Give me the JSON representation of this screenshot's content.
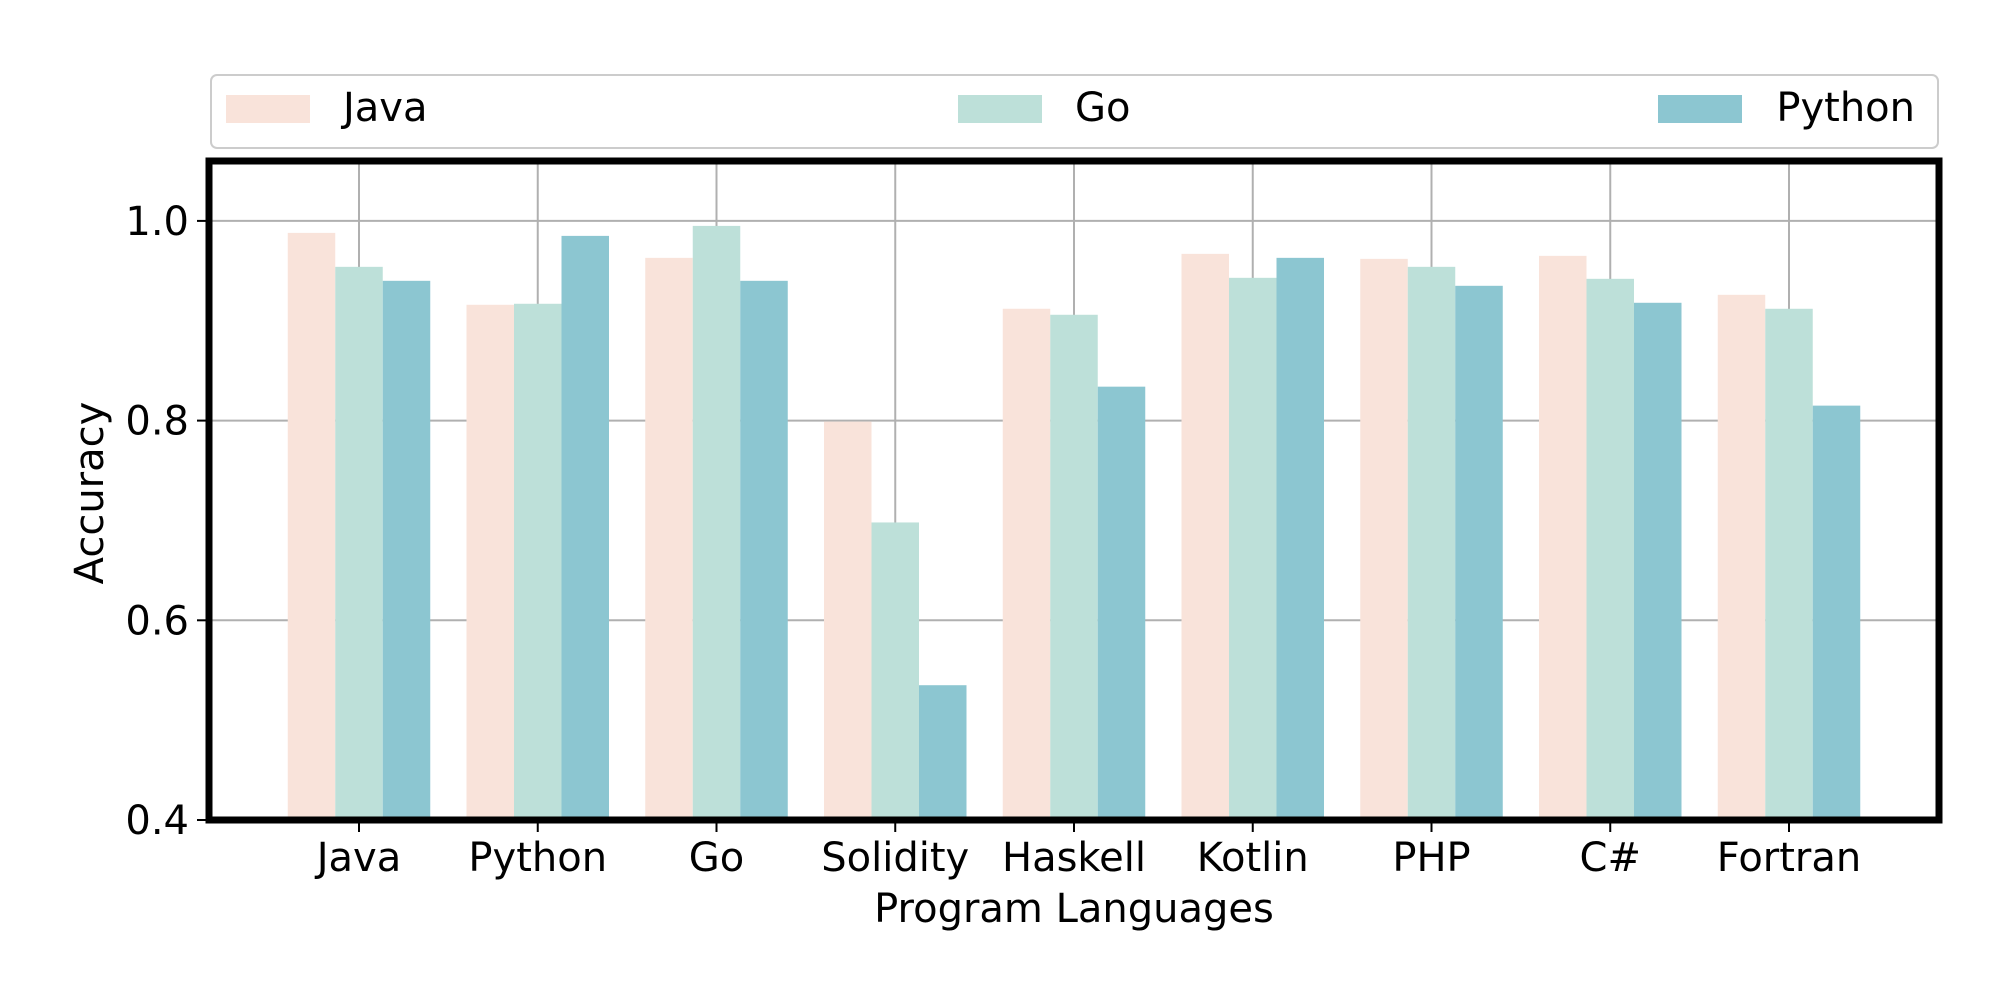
{
  "chart_data": {
    "type": "bar",
    "title": "",
    "xlabel": "Program Languages",
    "ylabel": "Accuracy",
    "ylim": [
      0.4,
      1.06
    ],
    "yticks": [
      "0.4",
      "0.6",
      "0.8",
      "1.0"
    ],
    "grid": true,
    "legend_position": "top",
    "categories": [
      "Java",
      "Python",
      "Go",
      "Solidity",
      "Haskell",
      "Kotlin",
      "PHP",
      "C#",
      "Fortran"
    ],
    "series": [
      {
        "name": "Java",
        "color": "#f9e3da",
        "values": [
          0.988,
          0.916,
          0.963,
          0.799,
          0.912,
          0.967,
          0.962,
          0.965,
          0.926
        ]
      },
      {
        "name": "Go",
        "color": "#bde0d9",
        "values": [
          0.954,
          0.917,
          0.995,
          0.698,
          0.906,
          0.943,
          0.954,
          0.942,
          0.912
        ]
      },
      {
        "name": "Python",
        "color": "#8cc6d1",
        "values": [
          0.94,
          0.985,
          0.94,
          0.535,
          0.834,
          0.963,
          0.935,
          0.918,
          0.815
        ]
      }
    ]
  }
}
